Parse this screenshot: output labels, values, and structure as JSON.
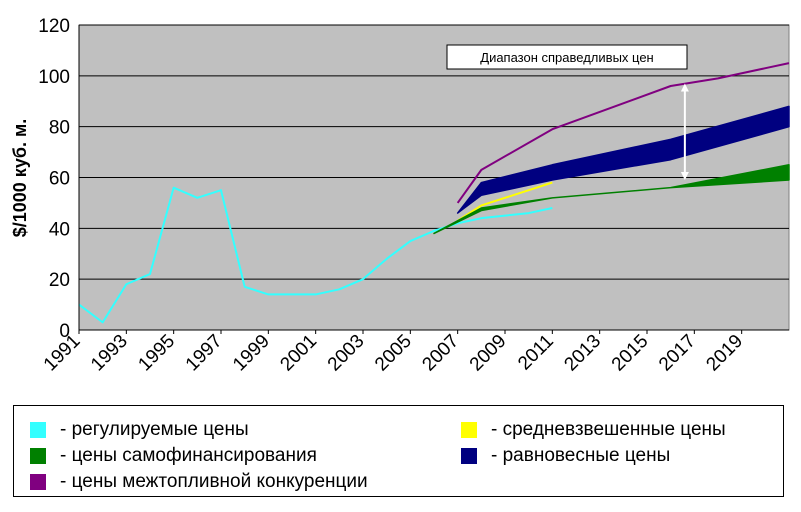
{
  "chart_data": {
    "type": "area",
    "title": "",
    "xlabel": "",
    "ylabel": "$/1000 куб. м.",
    "xlim": [
      1991,
      2021
    ],
    "ylim": [
      0,
      120
    ],
    "y_ticks": [
      "0",
      "20",
      "40",
      "60",
      "80",
      "100",
      "120"
    ],
    "x_ticks": [
      "1991",
      "1993",
      "1995",
      "1997",
      "1999",
      "2001",
      "2003",
      "2005",
      "2007",
      "2009",
      "2011",
      "2013",
      "2015",
      "2017",
      "2019"
    ],
    "grid": true,
    "plot_background": "#c0c0c0",
    "legend_position": "bottom",
    "annotation": "Диапазон справедливых цен",
    "annotation_arrow": {
      "x": 2016.6,
      "y_from": 59,
      "y_to": 97
    },
    "series": [
      {
        "name": "- регулируемые цены",
        "kind": "line",
        "color": "#33ffff",
        "x": [
          1991,
          1992,
          1993,
          1994,
          1995,
          1996,
          1997,
          1998,
          1999,
          2000,
          2001,
          2002,
          2003,
          2004,
          2005,
          2006,
          2007,
          2008,
          2009,
          2010,
          2011
        ],
        "y": [
          10,
          3,
          18,
          22,
          56,
          52,
          55,
          17,
          14,
          14,
          14,
          16,
          20,
          28,
          35,
          39,
          42,
          44,
          45,
          46,
          48
        ]
      },
      {
        "name": "- средневзвешенные цены",
        "kind": "line",
        "color": "#ffff00",
        "x": [
          2007,
          2008,
          2009,
          2010,
          2011
        ],
        "y": [
          43,
          49,
          52,
          55,
          58
        ]
      },
      {
        "name": "- цены самофинансирования",
        "kind": "band",
        "color": "#008000",
        "x": [
          2006,
          2008,
          2011,
          2016,
          2021
        ],
        "lower": [
          38,
          47,
          52,
          56,
          59
        ],
        "upper": [
          38,
          48,
          52,
          56,
          65
        ]
      },
      {
        "name": "- равновесные цены",
        "kind": "band",
        "color": "#000080",
        "x": [
          2007,
          2008,
          2011,
          2016,
          2021
        ],
        "lower": [
          46,
          53,
          59,
          67,
          80
        ],
        "upper": [
          46,
          58,
          65,
          75,
          88
        ]
      },
      {
        "name": "- цены межтопливной конкуренции",
        "kind": "line",
        "color": "#800080",
        "x": [
          2007,
          2008,
          2011,
          2016,
          2018,
          2020,
          2021
        ],
        "y": [
          50,
          63,
          79,
          96,
          99,
          103,
          105
        ]
      }
    ]
  },
  "legend": {
    "items": [
      {
        "label": "- регулируемые цены",
        "color": "#33ffff"
      },
      {
        "label": "- средневзвешенные цены",
        "color": "#ffff00"
      },
      {
        "label": "- цены самофинансирования",
        "color": "#008000"
      },
      {
        "label": "- равновесные цены",
        "color": "#000080"
      },
      {
        "label": "- цены межтопливной конкуренции",
        "color": "#800080"
      }
    ]
  }
}
